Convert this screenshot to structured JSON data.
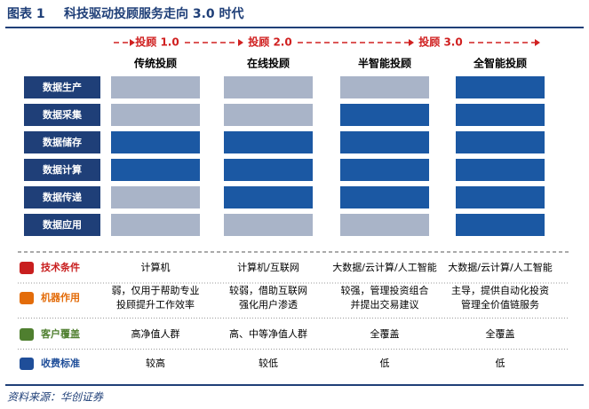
{
  "header": {
    "label": "图表 1",
    "title": "科技驱动投顾服务走向 3.0 时代"
  },
  "stages": [
    "投顾 1.0",
    "投顾 2.0",
    "投顾 3.0"
  ],
  "columns": [
    "传统投顾",
    "在线投顾",
    "半智能投顾",
    "全智能投顾"
  ],
  "rows": [
    "数据生产",
    "数据采集",
    "数据储存",
    "数据计算",
    "数据传递",
    "数据应用"
  ],
  "table": {
    "rows": [
      {
        "label": "技术条件",
        "cells": [
          [
            "计算机"
          ],
          [
            "计算机/互联网"
          ],
          [
            "大数据/云计算/人工智能"
          ],
          [
            "大数据/云计算/人工智能"
          ]
        ]
      },
      {
        "label": "机器作用",
        "cells": [
          [
            "弱，仅用于帮助专业",
            "投顾提升工作效率"
          ],
          [
            "较弱，借助互联网",
            "强化用户渗透"
          ],
          [
            "较强，管理投资组合",
            "并提出交易建议"
          ],
          [
            "主导，提供自动化投资",
            "管理全价值链服务"
          ]
        ]
      },
      {
        "label": "客户覆盖",
        "cells": [
          [
            "高净值人群"
          ],
          [
            "高、中等净值人群"
          ],
          [
            "全覆盖"
          ],
          [
            "全覆盖"
          ]
        ]
      },
      {
        "label": "收费标准",
        "cells": [
          [
            "较高"
          ],
          [
            "较低"
          ],
          [
            "低"
          ],
          [
            "低"
          ]
        ]
      }
    ]
  },
  "source": "资料来源：华创证券"
}
